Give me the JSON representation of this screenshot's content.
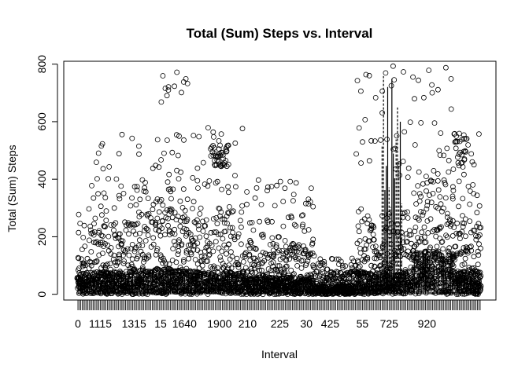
{
  "chart_data": {
    "type": "scatter",
    "title": "Total (Sum) Steps vs. Interval",
    "xlabel": "Interval",
    "ylabel": "Total (Sum) Steps",
    "ylim": [
      -20,
      810
    ],
    "y_ticks": [
      0,
      200,
      400,
      600,
      800
    ],
    "x_categories_count": 288,
    "x_tick_labels": [
      "0",
      "1115",
      "1315",
      "15",
      "1640",
      "1900",
      "210",
      "225",
      "30",
      "425",
      "55",
      "725",
      "920"
    ],
    "x_tick_category_positions": [
      1,
      17,
      41,
      60,
      77,
      102,
      122,
      145,
      164,
      181,
      204,
      223,
      250
    ],
    "grid": false,
    "legend": "none",
    "series": [
      {
        "marker": "open-circle",
        "band_profiles": [
          {
            "cat_range": [
              1,
              10
            ],
            "low_max": 60,
            "mid_max": 130,
            "high": [
              150,
              300
            ],
            "dense_low": true
          },
          {
            "cat_range": [
              10,
              40
            ],
            "low_max": 80,
            "mid_max": 250,
            "high": [
              250,
              560
            ]
          },
          {
            "cat_range": [
              40,
              80
            ],
            "low_max": 90,
            "mid_max": 300,
            "high": [
              300,
              560
            ]
          },
          {
            "cat_range": [
              60,
              80
            ],
            "peak": [
              660,
              790
            ]
          },
          {
            "cat_range": [
              80,
              120
            ],
            "low_max": 80,
            "mid_max": 300,
            "high": [
              300,
              590
            ]
          },
          {
            "cat_range": [
              120,
              170
            ],
            "low_max": 60,
            "mid_max": 180,
            "high": [
              180,
              400
            ]
          },
          {
            "cat_range": [
              170,
              200
            ],
            "low_max": 30,
            "mid_max": 80,
            "high": [
              80,
              140
            ]
          },
          {
            "cat_range": [
              200,
              240
            ],
            "low_max": 80,
            "mid_max": 300,
            "high": [
              400,
              810
            ]
          },
          {
            "cat_range": [
              240,
              270
            ],
            "low_max": 150,
            "mid_max": 400,
            "high": [
              400,
              800
            ]
          },
          {
            "cat_range": [
              270,
              288
            ],
            "low_max": 80,
            "mid_max": 250,
            "high": [
              250,
              560
            ]
          }
        ]
      }
    ],
    "boxplot_medians_shape": "near-zero with spikes near category 220-230 reaching 800",
    "colors": {
      "points": "#000000",
      "background": "#ffffff",
      "axes": "#000000"
    }
  }
}
